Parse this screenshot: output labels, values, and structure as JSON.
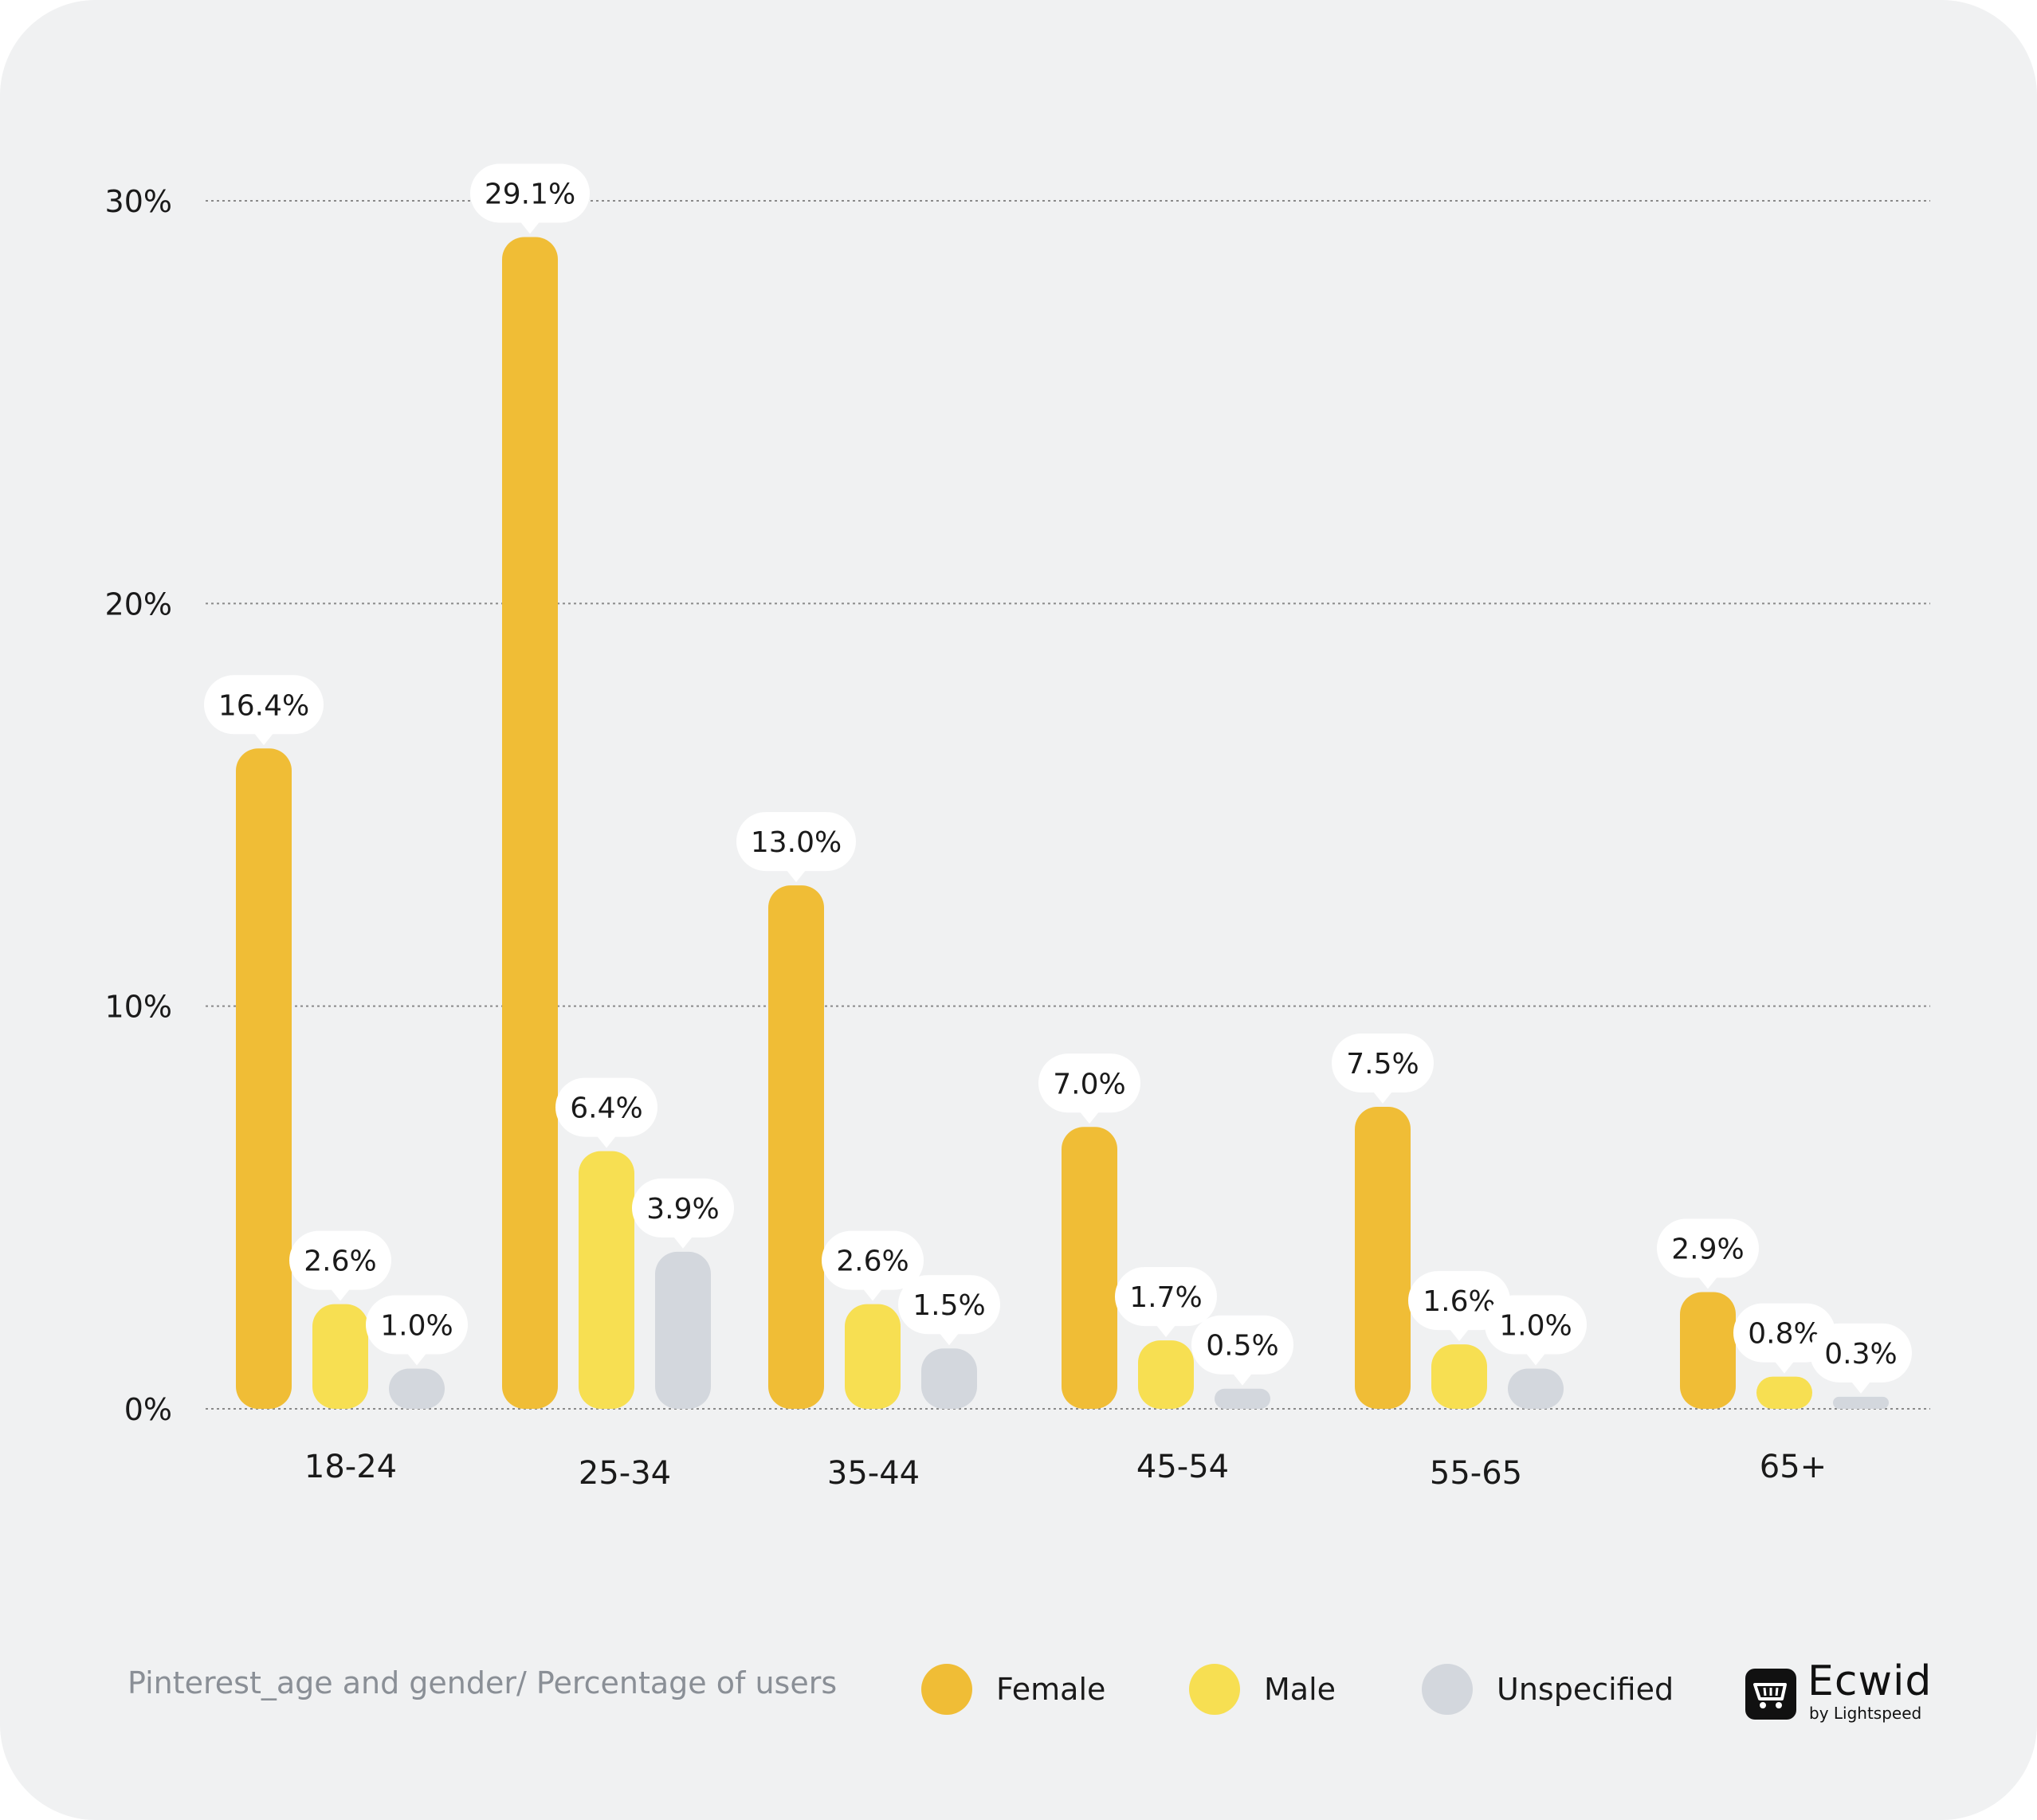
{
  "colors": {
    "background": "#f0f1f2",
    "female": "#f0bd36",
    "male": "#f7df52",
    "unspecified": "#d3d7dd",
    "grid": "#8a8a8a",
    "text": "#1a1a1a",
    "subtitle": "#8a8f96"
  },
  "chart_data": {
    "type": "bar",
    "categories": [
      "18-24",
      "25-34",
      "35-44",
      "45-54",
      "55-65",
      "65+"
    ],
    "series": [
      {
        "name": "Female",
        "values": [
          16.4,
          29.1,
          13.0,
          7.0,
          7.5,
          2.9
        ],
        "labels": [
          "16.4%",
          "29.1%",
          "13.0%",
          "7.0%",
          "7.5%",
          "2.9%"
        ]
      },
      {
        "name": "Male",
        "values": [
          2.6,
          6.4,
          2.6,
          1.7,
          1.6,
          0.8
        ],
        "labels": [
          "2.6%",
          "6.4%",
          "2.6%",
          "1.7%",
          "1.6%",
          "0.8%"
        ]
      },
      {
        "name": "Unspecified",
        "values": [
          1.0,
          3.9,
          1.5,
          0.5,
          1.0,
          0.3
        ],
        "labels": [
          "1.0%",
          "3.9%",
          "1.5%",
          "0.5%",
          "1.0%",
          "0.3%"
        ]
      }
    ],
    "yticks": [
      "0%",
      "10%",
      "20%",
      "30%"
    ],
    "ylim": [
      0,
      30
    ],
    "grid": true,
    "legend_position": "bottom",
    "caption": "Pinterest_age and gender/ Percentage of users"
  },
  "footer": {
    "caption": "Pinterest_age and gender/ Percentage of users",
    "legend": [
      "Female",
      "Male",
      "Unspecified"
    ]
  },
  "logo": {
    "icon": "cart-icon",
    "name": "Ecwid",
    "sub": "by Lightspeed"
  }
}
